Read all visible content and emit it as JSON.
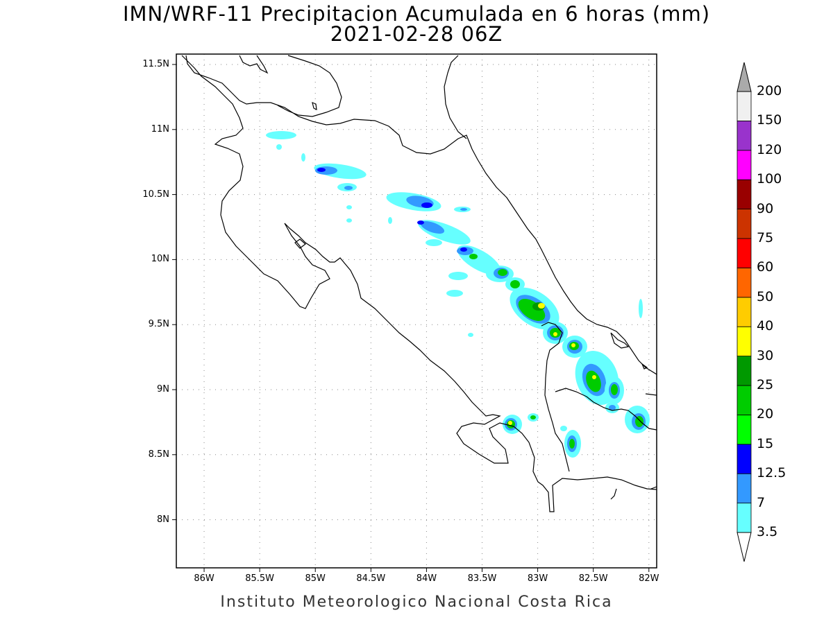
{
  "map": {
    "title": "IMN/WRF-11 Precipitacion Acumulada en 6 horas (mm)",
    "subtitle": "2021-02-28 06Z",
    "footer": "Instituto Meteorologico Nacional Costa Rica",
    "lon_ticks": [
      "86W",
      "85.5W",
      "85W",
      "84.5W",
      "84W",
      "83.5W",
      "83W",
      "82.5W",
      "82W"
    ],
    "lat_ticks": [
      "11.5N",
      "11N",
      "10.5N",
      "10N",
      "9.5N",
      "9N",
      "8.5N",
      "8N"
    ],
    "lon_range": [
      -86.25,
      -81.93
    ],
    "lat_range": [
      7.63,
      11.58
    ],
    "grid": true
  },
  "colorbar": {
    "levels": [
      "3.5",
      "7",
      "12.5",
      "15",
      "20",
      "25",
      "30",
      "40",
      "50",
      "60",
      "75",
      "90",
      "100",
      "120",
      "150",
      "200"
    ],
    "colors": [
      "#66ffff",
      "#3399ff",
      "#0000ff",
      "#00ff00",
      "#00cc00",
      "#009900",
      "#ffff00",
      "#ffcc00",
      "#ff6600",
      "#ff0000",
      "#cc3300",
      "#990000",
      "#ff00ff",
      "#9933cc",
      "#f0f0f0",
      "#aaaaaa"
    ]
  }
}
